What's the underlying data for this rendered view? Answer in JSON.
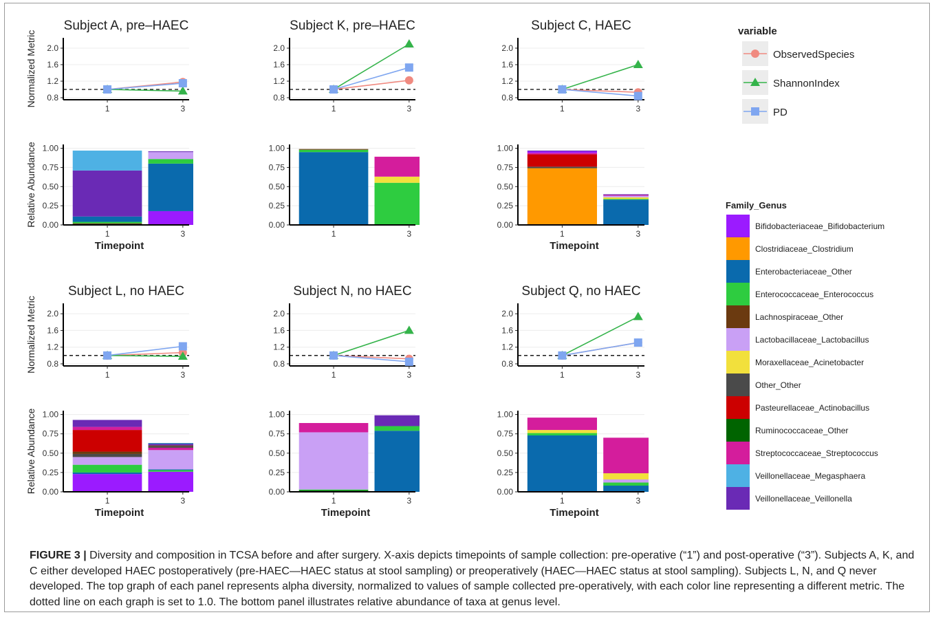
{
  "colors": {
    "ObservedSpecies": "#f08a80",
    "ShannonIndex": "#34b34a",
    "PD": "#7fa6f0",
    "Bifidobacteriaceae_Bifidobacterium": "#9b1bff",
    "Clostridiaceae_Clostridium": "#ff9900",
    "Enterobacteriaceae_Other": "#0a6aad",
    "Enterococcaceae_Enterococcus": "#2ecc40",
    "Lachnospiraceae_Other": "#6b3a10",
    "Lactobacillaceae_Lactobacillus": "#c9a0f5",
    "Moraxellaceae_Acinetobacter": "#f2e03c",
    "Other_Other": "#4a4a4a",
    "Pasteurellaceae_Actinobacillus": "#cc0000",
    "Ruminococcaceae_Other": "#006400",
    "Streptococcaceae_Streptococcus": "#d41d9c",
    "Veillonellaceae_Megasphaera": "#4eb1e4",
    "Veillonellaceae_Veillonella": "#6a2ab5"
  },
  "metric_legend": {
    "title": "variable",
    "items": [
      "ObservedSpecies",
      "ShannonIndex",
      "PD"
    ]
  },
  "taxa_legend": {
    "title": "Family_Genus",
    "items": [
      "Bifidobacteriaceae_Bifidobacterium",
      "Clostridiaceae_Clostridium",
      "Enterobacteriaceae_Other",
      "Enterococcaceae_Enterococcus",
      "Lachnospiraceae_Other",
      "Lactobacillaceae_Lactobacillus",
      "Moraxellaceae_Acinetobacter",
      "Other_Other",
      "Pasteurellaceae_Actinobacillus",
      "Ruminococcaceae_Other",
      "Streptococcaceae_Streptococcus",
      "Veillonellaceae_Megasphaera",
      "Veillonellaceae_Veillonella"
    ]
  },
  "chart_data": [
    {
      "type": "line",
      "title": "Subject A, pre–HAEC",
      "ylabel": "Normalized Metric",
      "categories": [
        "1",
        "3"
      ],
      "yticks": [
        "0.8",
        "1.2",
        "1.6",
        "2.0"
      ],
      "ylim": [
        0.75,
        2.25
      ],
      "reference_line": 1.0,
      "series": [
        {
          "name": "ObservedSpecies",
          "values": [
            1.0,
            1.18
          ]
        },
        {
          "name": "ShannonIndex",
          "values": [
            1.0,
            0.96
          ]
        },
        {
          "name": "PD",
          "values": [
            1.0,
            1.15
          ]
        }
      ]
    },
    {
      "type": "line",
      "title": "Subject K, pre–HAEC",
      "categories": [
        "1",
        "3"
      ],
      "yticks": [
        "0.8",
        "1.2",
        "1.6",
        "2.0"
      ],
      "ylim": [
        0.75,
        2.25
      ],
      "reference_line": 1.0,
      "series": [
        {
          "name": "ObservedSpecies",
          "values": [
            1.0,
            1.22
          ]
        },
        {
          "name": "ShannonIndex",
          "values": [
            1.0,
            2.1
          ]
        },
        {
          "name": "PD",
          "values": [
            1.0,
            1.53
          ]
        }
      ]
    },
    {
      "type": "line",
      "title": "Subject C, HAEC",
      "categories": [
        "1",
        "3"
      ],
      "yticks": [
        "0.8",
        "1.2",
        "1.6",
        "2.0"
      ],
      "ylim": [
        0.75,
        2.25
      ],
      "reference_line": 1.0,
      "series": [
        {
          "name": "ObservedSpecies",
          "values": [
            1.0,
            0.93
          ]
        },
        {
          "name": "ShannonIndex",
          "values": [
            1.0,
            1.6
          ]
        },
        {
          "name": "PD",
          "values": [
            1.0,
            0.84
          ]
        }
      ]
    },
    {
      "type": "bar",
      "stacked": true,
      "ylabel": "Relative Abundance",
      "xlabel": "Timepoint",
      "categories": [
        "1",
        "3"
      ],
      "yticks": [
        "0.00",
        "0.25",
        "0.50",
        "0.75",
        "1.00"
      ],
      "ylim": [
        0,
        1.05
      ],
      "stacks": [
        [
          [
            "Lachnospiraceae_Other",
            0.02
          ],
          [
            "Enterococcaceae_Enterococcus",
            0.02
          ],
          [
            "Enterobacteriaceae_Other",
            0.07
          ],
          [
            "Veillonellaceae_Veillonella",
            0.6
          ],
          [
            "Veillonellaceae_Megasphaera",
            0.26
          ]
        ],
        [
          [
            "Bifidobacteriaceae_Bifidobacterium",
            0.18
          ],
          [
            "Enterobacteriaceae_Other",
            0.62
          ],
          [
            "Enterococcaceae_Enterococcus",
            0.06
          ],
          [
            "Lactobacillaceae_Lactobacillus",
            0.09
          ],
          [
            "Veillonellaceae_Veillonella",
            0.01
          ]
        ]
      ]
    },
    {
      "type": "bar",
      "stacked": true,
      "xlabel": "",
      "categories": [
        "1",
        "3"
      ],
      "yticks": [
        "0.00",
        "0.25",
        "0.50",
        "0.75",
        "1.00"
      ],
      "ylim": [
        0,
        1.05
      ],
      "stacks": [
        [
          [
            "Enterobacteriaceae_Other",
            0.95
          ],
          [
            "Enterococcaceae_Enterococcus",
            0.03
          ],
          [
            "Lachnospiraceae_Other",
            0.01
          ]
        ],
        [
          [
            "Enterococcaceae_Enterococcus",
            0.55
          ],
          [
            "Moraxellaceae_Acinetobacter",
            0.08
          ],
          [
            "Streptococcaceae_Streptococcus",
            0.26
          ]
        ]
      ]
    },
    {
      "type": "bar",
      "stacked": true,
      "xlabel": "Timepoint",
      "categories": [
        "1",
        "3"
      ],
      "yticks": [
        "0.00",
        "0.25",
        "0.50",
        "0.75",
        "1.00"
      ],
      "ylim": [
        0,
        1.05
      ],
      "stacks": [
        [
          [
            "Clostridiaceae_Clostridium",
            0.74
          ],
          [
            "Other_Other",
            0.02
          ],
          [
            "Pasteurellaceae_Actinobacillus",
            0.16
          ],
          [
            "Streptococcaceae_Streptococcus",
            0.02
          ],
          [
            "Bifidobacteriaceae_Bifidobacterium",
            0.02
          ],
          [
            "Veillonellaceae_Veillonella",
            0.01
          ]
        ],
        [
          [
            "Enterobacteriaceae_Other",
            0.33
          ],
          [
            "Enterococcaceae_Enterococcus",
            0.01
          ],
          [
            "Moraxellaceae_Acinetobacter",
            0.02
          ],
          [
            "Lactobacillaceae_Lactobacillus",
            0.02
          ],
          [
            "Streptococcaceae_Streptococcus",
            0.01
          ],
          [
            "Veillonellaceae_Veillonella",
            0.01
          ]
        ]
      ]
    },
    {
      "type": "line",
      "title": "Subject L, no HAEC",
      "ylabel": "Normalized Metric",
      "categories": [
        "1",
        "3"
      ],
      "yticks": [
        "0.8",
        "1.2",
        "1.6",
        "2.0"
      ],
      "ylim": [
        0.75,
        2.25
      ],
      "reference_line": 1.0,
      "series": [
        {
          "name": "ObservedSpecies",
          "values": [
            1.0,
            1.07
          ]
        },
        {
          "name": "ShannonIndex",
          "values": [
            1.0,
            0.98
          ]
        },
        {
          "name": "PD",
          "values": [
            1.0,
            1.22
          ]
        }
      ]
    },
    {
      "type": "line",
      "title": "Subject N, no HAEC",
      "categories": [
        "1",
        "3"
      ],
      "yticks": [
        "0.8",
        "1.2",
        "1.6",
        "2.0"
      ],
      "ylim": [
        0.75,
        2.25
      ],
      "reference_line": 1.0,
      "series": [
        {
          "name": "ObservedSpecies",
          "values": [
            1.0,
            0.92
          ]
        },
        {
          "name": "ShannonIndex",
          "values": [
            1.0,
            1.6
          ]
        },
        {
          "name": "PD",
          "values": [
            1.0,
            0.85
          ]
        }
      ]
    },
    {
      "type": "line",
      "title": "Subject Q, no HAEC",
      "categories": [
        "1",
        "3"
      ],
      "yticks": [
        "0.8",
        "1.2",
        "1.6",
        "2.0"
      ],
      "ylim": [
        0.75,
        2.25
      ],
      "reference_line": 1.0,
      "series": [
        {
          "name": "ObservedSpecies",
          "values": [
            1.0,
            1.31
          ]
        },
        {
          "name": "ShannonIndex",
          "values": [
            1.0,
            1.93
          ]
        },
        {
          "name": "PD",
          "values": [
            1.0,
            1.31
          ]
        }
      ]
    },
    {
      "type": "bar",
      "stacked": true,
      "ylabel": "Relative Abundance",
      "xlabel": "Timepoint",
      "categories": [
        "1",
        "3"
      ],
      "yticks": [
        "0.00",
        "0.25",
        "0.50",
        "0.75",
        "1.00"
      ],
      "ylim": [
        0,
        1.05
      ],
      "stacks": [
        [
          [
            "Bifidobacteriaceae_Bifidobacterium",
            0.23
          ],
          [
            "Enterobacteriaceae_Other",
            0.02
          ],
          [
            "Enterococcaceae_Enterococcus",
            0.1
          ],
          [
            "Lactobacillaceae_Lactobacillus",
            0.1
          ],
          [
            "Other_Other",
            0.04
          ],
          [
            "Lachnospiraceae_Other",
            0.03
          ],
          [
            "Pasteurellaceae_Actinobacillus",
            0.28
          ],
          [
            "Streptococcaceae_Streptococcus",
            0.04
          ],
          [
            "Veillonellaceae_Veillonella",
            0.09
          ]
        ],
        [
          [
            "Bifidobacteriaceae_Bifidobacterium",
            0.26
          ],
          [
            "Enterococcaceae_Enterococcus",
            0.02
          ],
          [
            "Enterobacteriaceae_Other",
            0.01
          ],
          [
            "Lactobacillaceae_Lactobacillus",
            0.25
          ],
          [
            "Streptococcaceae_Streptococcus",
            0.03
          ],
          [
            "Other_Other",
            0.02
          ],
          [
            "Lachnospiraceae_Other",
            0.01
          ],
          [
            "Veillonellaceae_Veillonella",
            0.02
          ],
          [
            "Enterobacteriaceae_Other",
            0.01
          ]
        ]
      ]
    },
    {
      "type": "bar",
      "stacked": true,
      "xlabel": "Timepoint",
      "categories": [
        "1",
        "3"
      ],
      "yticks": [
        "0.00",
        "0.25",
        "0.50",
        "0.75",
        "1.00"
      ],
      "ylim": [
        0,
        1.05
      ],
      "stacks": [
        [
          [
            "Ruminococcaceae_Other",
            0.02
          ],
          [
            "Enterococcaceae_Enterococcus",
            0.01
          ],
          [
            "Lactobacillaceae_Lactobacillus",
            0.74
          ],
          [
            "Streptococcaceae_Streptococcus",
            0.12
          ]
        ],
        [
          [
            "Enterobacteriaceae_Other",
            0.79
          ],
          [
            "Enterococcaceae_Enterococcus",
            0.06
          ],
          [
            "Veillonellaceae_Veillonella",
            0.14
          ]
        ]
      ]
    },
    {
      "type": "bar",
      "stacked": true,
      "xlabel": "Timepoint",
      "categories": [
        "1",
        "3"
      ],
      "yticks": [
        "0.00",
        "0.25",
        "0.50",
        "0.75",
        "1.00"
      ],
      "ylim": [
        0,
        1.05
      ],
      "stacks": [
        [
          [
            "Enterobacteriaceae_Other",
            0.73
          ],
          [
            "Enterococcaceae_Enterococcus",
            0.03
          ],
          [
            "Moraxellaceae_Acinetobacter",
            0.04
          ],
          [
            "Streptococcaceae_Streptococcus",
            0.16
          ]
        ],
        [
          [
            "Enterobacteriaceae_Other",
            0.08
          ],
          [
            "Enterococcaceae_Enterococcus",
            0.04
          ],
          [
            "Lactobacillaceae_Lactobacillus",
            0.04
          ],
          [
            "Moraxellaceae_Acinetobacter",
            0.08
          ],
          [
            "Streptococcaceae_Streptococcus",
            0.46
          ]
        ]
      ]
    }
  ],
  "caption": {
    "label": "FIGURE 3 |",
    "text": " Diversity and composition in TCSA before and after surgery. X-axis depicts timepoints of sample collection: pre-operative (“1”) and post-operative (“3”). Subjects A, K, and C either developed HAEC postoperatively (pre-HAEC—HAEC status at stool sampling) or preoperatively (HAEC—HAEC status at stool sampling). Subjects L, N, and Q never developed. The top graph of each panel represents alpha diversity, normalized to values of sample collected pre-operatively, with each color line representing a different metric. The dotted line on each graph is set to 1.0. The bottom panel illustrates relative abundance of taxa at genus level."
  }
}
